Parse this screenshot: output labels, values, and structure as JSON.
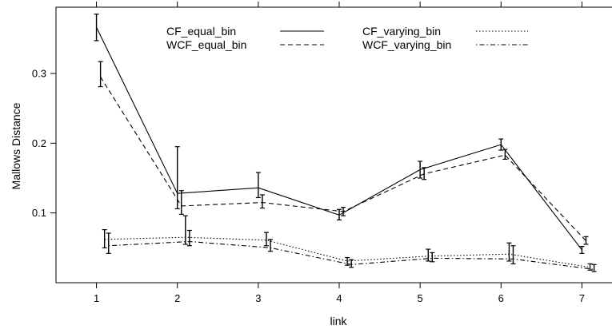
{
  "chart_data": {
    "type": "line",
    "title": "",
    "xlabel": "link",
    "ylabel": "Mallows Distance",
    "x": [
      1,
      2,
      3,
      4,
      5,
      6,
      7
    ],
    "xlim": [
      0.5,
      7.5
    ],
    "ylim": [
      0.0,
      0.395
    ],
    "xticks": [
      "1",
      "2",
      "3",
      "4",
      "5",
      "6",
      "7"
    ],
    "yticks": [
      {
        "value": 0.1,
        "label": "0.1"
      },
      {
        "value": 0.2,
        "label": "0.2"
      },
      {
        "value": 0.3,
        "label": "0.3"
      }
    ],
    "grid": false,
    "legend_position": "top-center",
    "series": [
      {
        "name": "CF_equal_bin",
        "linestyle": "solid",
        "x_offset": 0.0,
        "values": [
          0.366,
          0.128,
          0.136,
          0.097,
          0.162,
          0.198,
          0.047
        ],
        "err_low": [
          0.347,
          0.106,
          0.122,
          0.09,
          0.15,
          0.19,
          0.042
        ],
        "err_high": [
          0.385,
          0.195,
          0.158,
          0.105,
          0.174,
          0.206,
          0.052
        ]
      },
      {
        "name": "WCF_equal_bin",
        "linestyle": "dashed",
        "x_offset": 0.05,
        "values": [
          0.295,
          0.11,
          0.115,
          0.102,
          0.156,
          0.183,
          0.06
        ],
        "err_low": [
          0.281,
          0.098,
          0.107,
          0.096,
          0.148,
          0.177,
          0.055
        ],
        "err_high": [
          0.317,
          0.132,
          0.126,
          0.108,
          0.165,
          0.191,
          0.066
        ]
      },
      {
        "name": "CF_varying_bin",
        "linestyle": "dotted",
        "x_offset": 0.1,
        "values": [
          0.062,
          0.065,
          0.061,
          0.031,
          0.038,
          0.041,
          0.022
        ],
        "err_low": [
          0.05,
          0.055,
          0.053,
          0.025,
          0.031,
          0.031,
          0.018
        ],
        "err_high": [
          0.076,
          0.096,
          0.072,
          0.036,
          0.048,
          0.057,
          0.027
        ]
      },
      {
        "name": "WCF_varying_bin",
        "linestyle": "dotdash",
        "x_offset": 0.15,
        "values": [
          0.053,
          0.059,
          0.05,
          0.026,
          0.035,
          0.034,
          0.019
        ],
        "err_low": [
          0.042,
          0.053,
          0.045,
          0.022,
          0.03,
          0.027,
          0.016
        ],
        "err_high": [
          0.071,
          0.075,
          0.062,
          0.033,
          0.043,
          0.053,
          0.026
        ]
      }
    ]
  }
}
